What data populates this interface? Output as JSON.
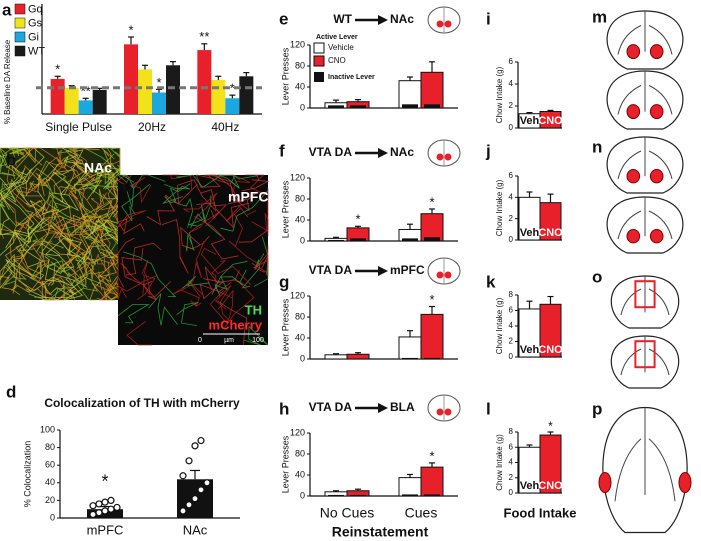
{
  "chart_data": [
    {
      "type": "grouped",
      "panel": "a",
      "ylabel": "% Baseline DA Release",
      "categories": [
        "Single Pulse",
        "20Hz",
        "40Hz"
      ],
      "ylim": [
        50,
        260
      ],
      "baseline": 100,
      "series": [
        {
          "name": "Gq",
          "color": "#e8202a",
          "values": [
            117,
            183,
            172
          ],
          "errors": [
            5,
            14,
            12
          ],
          "sig": [
            "*",
            "*",
            "**"
          ]
        },
        {
          "name": "Gs",
          "color": "#f2e21c",
          "values": [
            100,
            135,
            115
          ],
          "errors": [
            4,
            8,
            7
          ]
        },
        {
          "name": "Gi",
          "color": "#1ca7e0",
          "values": [
            76,
            91,
            80
          ],
          "errors": [
            4,
            6,
            6
          ],
          "sig": [
            "**",
            "*",
            "*"
          ]
        },
        {
          "name": "WT",
          "color": "#1a1a1a",
          "values": [
            96,
            143,
            122
          ],
          "errors": [
            3,
            7,
            7
          ]
        }
      ]
    },
    {
      "type": "bar-scatter",
      "panel": "d",
      "title": "Colocalization of TH with mCherry",
      "ylabel": "% Colocalization",
      "categories": [
        "mPFC",
        "NAc"
      ],
      "values": [
        10,
        44
      ],
      "errors": [
        3,
        10
      ],
      "points": [
        [
          4,
          6,
          8,
          10,
          12,
          14,
          16,
          18,
          20
        ],
        [
          8,
          15,
          22,
          32,
          40,
          48,
          65,
          82,
          88
        ]
      ],
      "sig": [
        "*",
        null
      ],
      "ylim": [
        0,
        100
      ],
      "yticks": [
        0,
        20,
        40,
        60,
        80,
        100
      ],
      "color": "#111111"
    },
    {
      "type": "lever",
      "panel": "e",
      "source": "WT",
      "target": "NAc",
      "ylabel": "Lever Presses",
      "ylim": [
        0,
        120
      ],
      "yticks": [
        0,
        40,
        80,
        120
      ],
      "legend": true,
      "legend_title": "Active Lever",
      "inactive_name": "Inactive Lever",
      "series": [
        {
          "name": "Vehicle",
          "color": "#ffffff",
          "values": [
            10,
            52
          ],
          "errors": [
            5,
            7
          ],
          "inactive": [
            5,
            7
          ]
        },
        {
          "name": "CNO",
          "color": "#e8202a",
          "values": [
            12,
            68
          ],
          "errors": [
            4,
            20
          ],
          "inactive": [
            5,
            7
          ]
        }
      ]
    },
    {
      "type": "lever",
      "panel": "f",
      "source": "VTA DA",
      "target": "NAc",
      "ylabel": "Lever Presses",
      "ylim": [
        0,
        120
      ],
      "yticks": [
        0,
        40,
        80,
        120
      ],
      "series": [
        {
          "color": "#ffffff",
          "values": [
            5,
            22
          ],
          "errors": [
            2,
            10
          ],
          "inactive": [
            2,
            5
          ]
        },
        {
          "color": "#e8202a",
          "values": [
            25,
            52
          ],
          "errors": [
            3,
            9
          ],
          "inactive": [
            5,
            7
          ],
          "sig": [
            "*",
            "*"
          ]
        }
      ]
    },
    {
      "type": "lever",
      "panel": "g",
      "source": "VTA DA",
      "target": "mPFC",
      "ylabel": "Lever Presses",
      "ylim": [
        0,
        120
      ],
      "yticks": [
        0,
        40,
        80,
        120
      ],
      "series": [
        {
          "color": "#ffffff",
          "values": [
            8,
            42
          ],
          "errors": [
            2,
            12
          ],
          "inactive": [
            1,
            2
          ]
        },
        {
          "color": "#e8202a",
          "values": [
            9,
            85
          ],
          "errors": [
            3,
            15
          ],
          "inactive": [
            1,
            2
          ],
          "sig": [
            null,
            "*"
          ]
        }
      ]
    },
    {
      "type": "lever",
      "panel": "h",
      "source": "VTA DA",
      "target": "BLA",
      "ylabel": "Lever Presses",
      "ylim": [
        0,
        120
      ],
      "yticks": [
        0,
        40,
        80,
        120
      ],
      "categories": [
        "No Cues",
        "Cues"
      ],
      "series": [
        {
          "color": "#ffffff",
          "values": [
            8,
            35
          ],
          "errors": [
            2,
            6
          ],
          "inactive": [
            2,
            3
          ]
        },
        {
          "color": "#e8202a",
          "values": [
            10,
            55
          ],
          "errors": [
            3,
            8
          ],
          "inactive": [
            2,
            3
          ],
          "sig": [
            null,
            "*"
          ]
        }
      ]
    },
    {
      "type": "chow",
      "panel": "i",
      "ylabel": "Chow Intake (g)",
      "categories": [
        "Veh",
        "CNO"
      ],
      "values": [
        1.3,
        1.5
      ],
      "errors": [
        0.1,
        0.1
      ],
      "colors": [
        "#ffffff",
        "#e8202a"
      ],
      "ylim": [
        0,
        6
      ],
      "yticks": [
        0,
        2,
        4,
        6
      ]
    },
    {
      "type": "chow",
      "panel": "j",
      "ylabel": "Chow Intake (g)",
      "categories": [
        "Veh",
        "CNO"
      ],
      "values": [
        4.0,
        3.5
      ],
      "errors": [
        0.5,
        0.8
      ],
      "colors": [
        "#ffffff",
        "#e8202a"
      ],
      "ylim": [
        0,
        6
      ],
      "yticks": [
        0,
        2,
        4,
        6
      ]
    },
    {
      "type": "chow",
      "panel": "k",
      "ylabel": "Chow Intake (g)",
      "categories": [
        "Veh",
        "CNO"
      ],
      "values": [
        6.2,
        6.8
      ],
      "errors": [
        1.0,
        1.0
      ],
      "colors": [
        "#ffffff",
        "#e8202a"
      ],
      "ylim": [
        0,
        8
      ],
      "yticks": [
        0,
        2,
        4,
        6,
        8
      ]
    },
    {
      "type": "chow",
      "panel": "l",
      "ylabel": "Chow Intake (g)",
      "categories": [
        "Veh",
        "CNO"
      ],
      "values": [
        6.0,
        7.6
      ],
      "errors": [
        0.3,
        0.4
      ],
      "colors": [
        "#ffffff",
        "#e8202a"
      ],
      "ylim": [
        0,
        8
      ],
      "yticks": [
        0,
        2,
        4,
        6,
        8
      ],
      "sig": [
        null,
        "*"
      ]
    }
  ],
  "images": [
    {
      "panel": "b",
      "label": "NAc"
    },
    {
      "panel": "c",
      "label": "mPFC",
      "channels": [
        {
          "name": "TH",
          "color": "#4de04d"
        },
        {
          "name": "mCherry",
          "color": "#ff2a2a"
        }
      ],
      "scale": [
        "0",
        "µm",
        "100"
      ]
    }
  ],
  "atlas": [
    {
      "panel": "m"
    },
    {
      "panel": "n"
    },
    {
      "panel": "o"
    },
    {
      "panel": "p"
    }
  ],
  "labels": {
    "reinstatement": "Reinstatement",
    "food": "Food Intake"
  }
}
